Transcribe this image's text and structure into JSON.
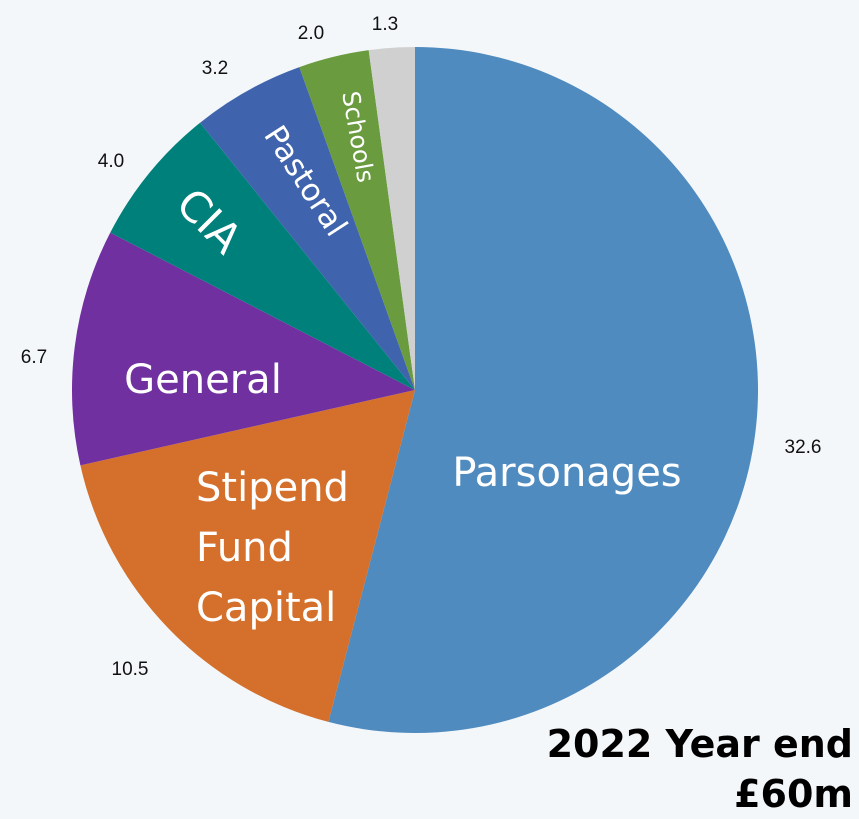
{
  "chart_data": {
    "type": "pie",
    "title": "2022 Year end",
    "subtitle": "£60m",
    "start_angle_deg": 0,
    "direction": "clockwise",
    "slices": [
      {
        "label": "Parsonages",
        "value": 32.6,
        "value_label": "32.6",
        "color": "#4f8bbf"
      },
      {
        "label": "Stipend Fund Capital",
        "value": 10.5,
        "value_label": "10.5",
        "color": "#d4702b"
      },
      {
        "label": "General",
        "value": 6.7,
        "value_label": "6.7",
        "color": "#7030a0"
      },
      {
        "label": "CIA",
        "value": 4.0,
        "value_label": "4.0",
        "color": "#00807a"
      },
      {
        "label": "Pastoral",
        "value": 3.2,
        "value_label": "3.2",
        "color": "#3f64ad"
      },
      {
        "label": "Schools",
        "value": 2.0,
        "value_label": "2.0",
        "color": "#6a9c3f"
      },
      {
        "label": "",
        "value": 1.3,
        "value_label": "1.3",
        "color": "#d0d0d0"
      }
    ]
  }
}
